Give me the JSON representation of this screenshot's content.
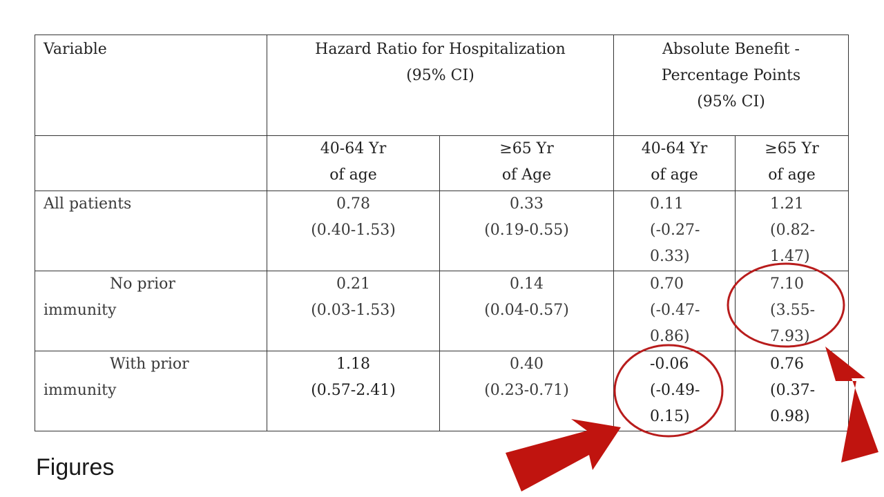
{
  "table": {
    "header_variable": "Variable",
    "header_hr_line1": "Hazard Ratio for Hospitalization",
    "header_hr_line2": "(95% CI)",
    "header_ab_line1": "Absolute Benefit -",
    "header_ab_line2": "Percentage Points",
    "header_ab_line3": "(95% CI)",
    "sub": {
      "hr_4064_l1": "40-64 Yr",
      "hr_4064_l2": "of age",
      "hr_65_l1": "≥65 Yr",
      "hr_65_l2": "of Age",
      "ab_4064_l1": "40-64 Yr",
      "ab_4064_l2": "of age",
      "ab_65_l1": "≥65 Yr",
      "ab_65_l2": "of age"
    },
    "rows": [
      {
        "label_l1": "All patients",
        "label_l2": "",
        "hr_4064": [
          "0.78",
          "(0.40-1.53)"
        ],
        "hr_65": [
          "0.33",
          "(0.19-0.55)"
        ],
        "ab_4064": [
          "0.11",
          "(-0.27-",
          "0.33)"
        ],
        "ab_65": [
          "1.21",
          "(0.82-",
          "1.47)"
        ]
      },
      {
        "label_l1": "No prior",
        "label_l2": "immunity",
        "hr_4064": [
          "0.21",
          "(0.03-1.53)"
        ],
        "hr_65": [
          "0.14",
          "(0.04-0.57)"
        ],
        "ab_4064": [
          "0.70",
          "(-0.47-",
          "0.86)"
        ],
        "ab_65": [
          "7.10",
          "(3.55-",
          "7.93)"
        ]
      },
      {
        "label_l1": "With prior",
        "label_l2": "immunity",
        "hr_4064": [
          "1.18",
          "(0.57-2.41)"
        ],
        "hr_65": [
          "0.40",
          "(0.23-0.71)"
        ],
        "ab_4064": [
          "-0.06",
          "(-0.49-",
          "0.15)"
        ],
        "ab_65": [
          "0.76",
          "(0.37-",
          "0.98)"
        ]
      }
    ]
  },
  "section_heading": "Figures",
  "annotation_colors": {
    "circle": "#b81c1c",
    "arrow": "#c0140f"
  }
}
